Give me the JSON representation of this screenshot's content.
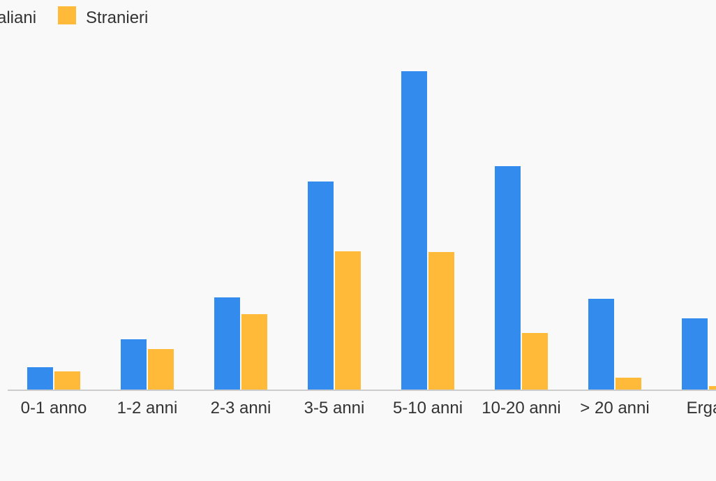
{
  "chart_data": {
    "type": "bar",
    "categories": [
      "0-1 anno",
      "1-2 anni",
      "2-3 anni",
      "3-5 anni",
      "5-10 anni",
      "10-20 anni",
      "> 20 anni",
      "Ergas"
    ],
    "series": [
      {
        "name": "aliani",
        "color": "#348bee",
        "values": [
          32,
          72,
          132,
          298,
          456,
          320,
          130,
          102
        ]
      },
      {
        "name": "Stranieri",
        "color": "#ffba3a",
        "values": [
          26,
          58,
          108,
          198,
          197,
          81,
          17,
          5
        ]
      }
    ],
    "ylim": [
      0,
      500
    ],
    "legend_position": "top-left",
    "grid": false,
    "baseline_color": "#cccccc"
  }
}
